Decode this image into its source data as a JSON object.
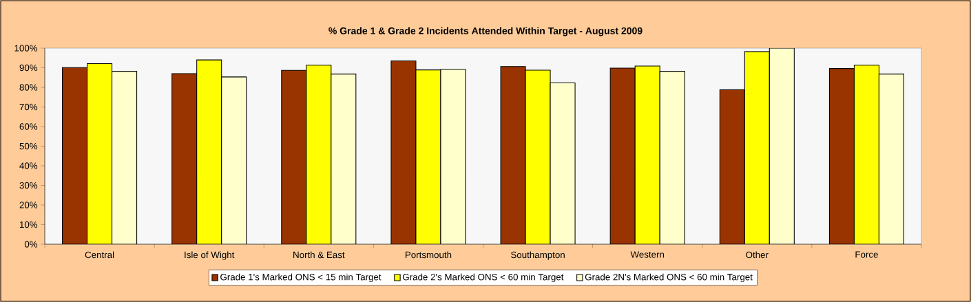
{
  "chart_data": {
    "type": "bar",
    "title": "% Grade 1 & Grade 2 Incidents Attended Within Target - August 2009",
    "categories": [
      "Central",
      "Isle of Wight",
      "North & East",
      "Portsmouth",
      "Southampton",
      "Western",
      "Other",
      "Force"
    ],
    "series": [
      {
        "name": "Grade 1's Marked ONS < 15 min Target",
        "color": "#993300",
        "values": [
          90.1,
          87.0,
          88.7,
          93.5,
          90.6,
          89.8,
          78.8,
          89.6
        ]
      },
      {
        "name": "Grade 2's Marked ONS < 60 min Target",
        "color": "#ffff00",
        "values": [
          92.1,
          94.0,
          91.3,
          88.9,
          88.8,
          90.9,
          98.2,
          91.3
        ]
      },
      {
        "name": "Grade 2N's Marked ONS < 60 min Target",
        "color": "#ffffcc",
        "values": [
          88.2,
          85.3,
          86.8,
          89.2,
          82.3,
          88.2,
          100,
          86.8
        ]
      }
    ],
    "ylim": [
      0,
      100
    ],
    "yticks": [
      {
        "value": 0,
        "label": "0%"
      },
      {
        "value": 10,
        "label": "10%"
      },
      {
        "value": 20,
        "label": "20%"
      },
      {
        "value": 30,
        "label": "30%"
      },
      {
        "value": 40,
        "label": "40%"
      },
      {
        "value": 50,
        "label": "50%"
      },
      {
        "value": 60,
        "label": "60%"
      },
      {
        "value": 70,
        "label": "70%"
      },
      {
        "value": 80,
        "label": "80%"
      },
      {
        "value": 90,
        "label": "90%"
      },
      {
        "value": 100,
        "label": "100%"
      }
    ],
    "grid": false,
    "legend": "bottom"
  }
}
